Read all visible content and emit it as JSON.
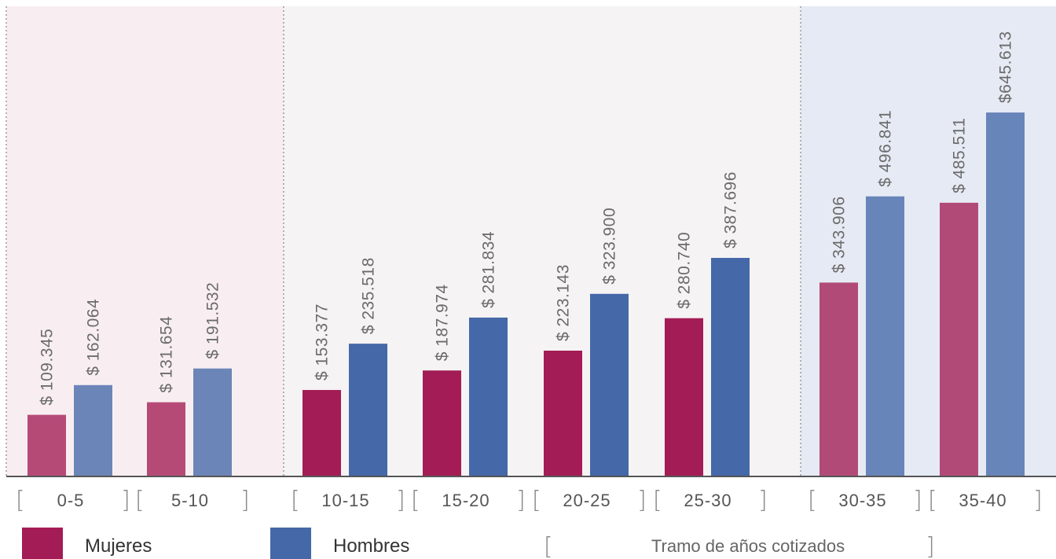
{
  "chart_data": {
    "type": "bar",
    "categories": [
      "0-5",
      "5-10",
      "10-15",
      "15-20",
      "20-25",
      "25-30",
      "30-35",
      "35-40"
    ],
    "series": [
      {
        "name": "Mujeres",
        "color": "#a31c55",
        "values": [
          109345,
          131654,
          153377,
          187974,
          223143,
          280740,
          343906,
          485511
        ],
        "labels": [
          "$ 109.345",
          "$ 131.654",
          "$ 153.377",
          "$ 187.974",
          "$ 223.143",
          "$ 280.740",
          "$ 343.906",
          "$ 485.511"
        ]
      },
      {
        "name": "Hombres",
        "color": "#4468a8",
        "values": [
          162064,
          191532,
          235518,
          281834,
          323900,
          387696,
          496841,
          645613
        ],
        "labels": [
          "$ 162.064",
          "$ 191.532",
          "$ 235.518",
          "$ 281.834",
          "$ 323.900",
          "$ 387.696",
          "$ 496.841",
          "$645.613"
        ]
      }
    ],
    "xlabel": "Tramo de años cotizados",
    "ylabel": "",
    "grid": false,
    "legend": "bottom-left",
    "groups": [
      {
        "categories": [
          "0-5",
          "5-10"
        ],
        "background": "#f8eef2",
        "faded": true
      },
      {
        "categories": [
          "10-15",
          "15-20",
          "20-25",
          "25-30"
        ],
        "background": "#f5f3f3",
        "faded": false
      },
      {
        "categories": [
          "30-35",
          "35-40"
        ],
        "background": "#e6eaf4",
        "faded": true
      }
    ]
  }
}
